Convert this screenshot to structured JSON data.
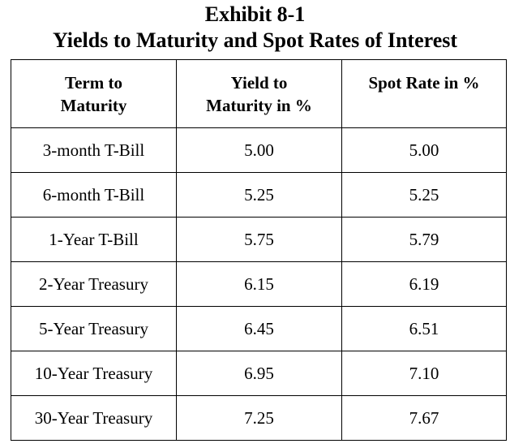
{
  "title": {
    "line1": "Exhibit 8-1",
    "line2": "Yields to Maturity and Spot Rates of Interest"
  },
  "table": {
    "headers": [
      [
        "Term to",
        "Maturity"
      ],
      [
        "Yield to",
        "Maturity in %"
      ],
      [
        "Spot Rate in %"
      ]
    ],
    "rows": [
      [
        "3-month T-Bill",
        "5.00",
        "5.00"
      ],
      [
        "6-month T-Bill",
        "5.25",
        "5.25"
      ],
      [
        "1-Year T-Bill",
        "5.75",
        "5.79"
      ],
      [
        "2-Year Treasury",
        "6.15",
        "6.19"
      ],
      [
        "5-Year Treasury",
        "6.45",
        "6.51"
      ],
      [
        "10-Year Treasury",
        "6.95",
        "7.10"
      ],
      [
        "30-Year Treasury",
        "7.25",
        "7.67"
      ]
    ]
  }
}
